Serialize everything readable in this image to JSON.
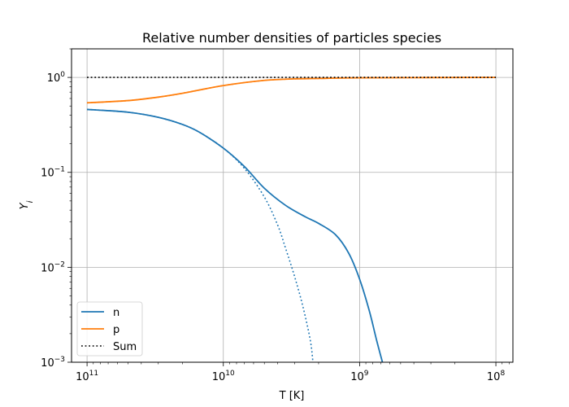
{
  "chart_data": {
    "type": "line",
    "title": "Relative number densities of particles species",
    "xlabel": "T [K]",
    "ylabel": "Y_i",
    "x_scale": "log",
    "x_inverted": true,
    "y_scale": "log",
    "xlim": [
      130000000000,
      75000000
    ],
    "ylim": [
      0.001,
      2
    ],
    "grid": true,
    "legend_position": "lower-left",
    "x_ticks": [
      {
        "value": 100000000000,
        "base": "10",
        "exp": "11"
      },
      {
        "value": 10000000000,
        "base": "10",
        "exp": "10"
      },
      {
        "value": 1000000000,
        "base": "10",
        "exp": "9"
      },
      {
        "value": 100000000,
        "base": "10",
        "exp": "8"
      }
    ],
    "y_ticks": [
      {
        "value": 1,
        "base": "10",
        "exp": "0"
      },
      {
        "value": 0.1,
        "base": "10",
        "exp": "−1"
      },
      {
        "value": 0.01,
        "base": "10",
        "exp": "−2"
      },
      {
        "value": 0.001,
        "base": "10",
        "exp": "−3"
      }
    ],
    "series": [
      {
        "name": "n",
        "color": "#1f77b4",
        "style": "solid",
        "x": [
          100000000000,
          50000000000,
          30000000000,
          20000000000,
          15000000000,
          10000000000,
          7000000000,
          5000000000,
          3500000000,
          2500000000,
          2000000000,
          1500000000,
          1200000000,
          1000000000,
          850000000,
          750000000,
          680000000
        ],
        "values": [
          0.46,
          0.43,
          0.38,
          0.32,
          0.265,
          0.18,
          0.115,
          0.068,
          0.045,
          0.034,
          0.029,
          0.022,
          0.014,
          0.0075,
          0.0035,
          0.0017,
          0.001
        ]
      },
      {
        "name": "",
        "color": "#1f77b4",
        "style": "dotted",
        "x": [
          100000000000,
          50000000000,
          30000000000,
          20000000000,
          15000000000,
          10000000000,
          7000000000,
          5000000000,
          4000000000,
          3500000000,
          3000000000,
          2600000000,
          2300000000,
          2200000000
        ],
        "values": [
          0.46,
          0.43,
          0.38,
          0.32,
          0.265,
          0.18,
          0.11,
          0.055,
          0.028,
          0.016,
          0.008,
          0.0038,
          0.0017,
          0.001
        ]
      },
      {
        "name": "p",
        "color": "#ff7f0e",
        "style": "solid",
        "x": [
          100000000000,
          50000000000,
          30000000000,
          20000000000,
          10000000000,
          5000000000,
          3000000000,
          2000000000,
          1000000000,
          100000000
        ],
        "values": [
          0.54,
          0.57,
          0.62,
          0.68,
          0.82,
          0.93,
          0.965,
          0.975,
          0.99,
          1.0
        ]
      },
      {
        "name": "",
        "color": "#ff7f0e",
        "style": "dotted",
        "x": [
          100000000000,
          50000000000,
          30000000000,
          20000000000,
          10000000000,
          5000000000,
          3000000000,
          2000000000,
          1000000000,
          100000000
        ],
        "values": [
          0.54,
          0.57,
          0.62,
          0.68,
          0.82,
          0.93,
          0.965,
          0.975,
          0.99,
          1.0
        ]
      },
      {
        "name": "Sum",
        "color": "#000000",
        "style": "dotted",
        "x": [
          100000000000,
          100000000
        ],
        "values": [
          1.0,
          1.0
        ]
      }
    ]
  }
}
